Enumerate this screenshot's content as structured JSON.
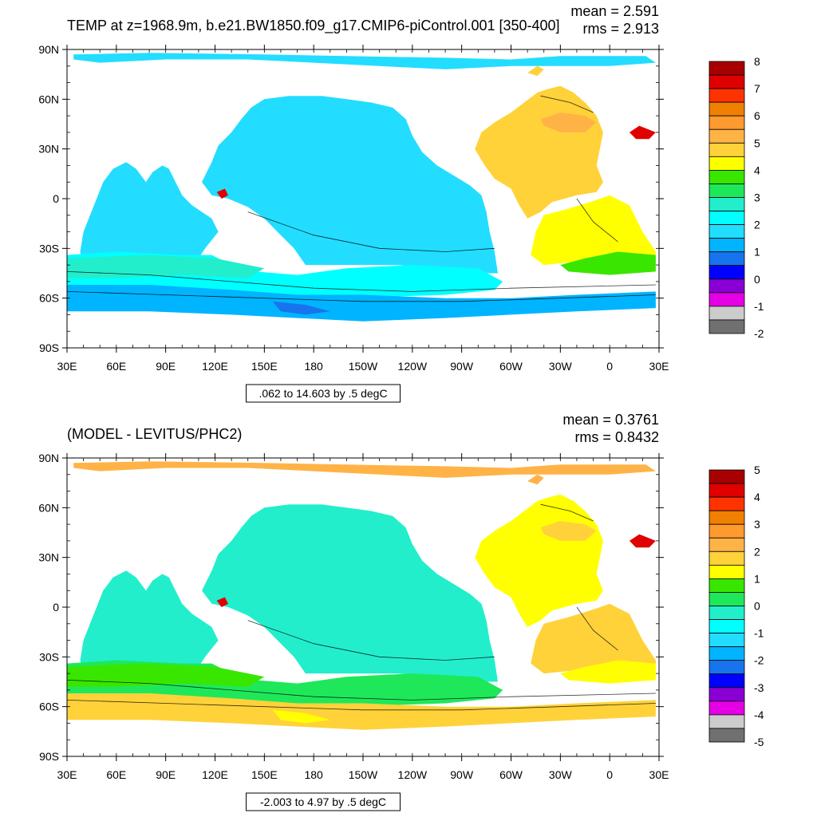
{
  "panels": [
    {
      "id": "top",
      "title": "TEMP at z=1968.9m, b.e21.BW1850.f09_g17.CMIP6-piControl.001 [350-400]",
      "stats": {
        "mean": "mean = 2.591",
        "rms": "rms = 2.913"
      },
      "info_box": ".062 to 14.603 by .5 degC",
      "lat_ticks": [
        "90N",
        "60N",
        "30N",
        "0",
        "30S",
        "60S",
        "90S"
      ],
      "lon_ticks": [
        "30E",
        "60E",
        "90E",
        "120E",
        "150E",
        "180",
        "150W",
        "120W",
        "90W",
        "60W",
        "30W",
        "0",
        "30E"
      ],
      "colorbar": {
        "labels": [
          "8",
          "7",
          "6",
          "5",
          "4",
          "3",
          "2",
          "1",
          "0",
          "-1",
          "-2"
        ],
        "colors": [
          "#a80000",
          "#e00000",
          "#ff3300",
          "#f08000",
          "#ff9a2e",
          "#ffb347",
          "#ffd23a",
          "#ffff00",
          "#39e600",
          "#1ee85a",
          "#22eecc",
          "#00ffff",
          "#22ddff",
          "#00b4ff",
          "#1874ee",
          "#0000ff",
          "#8a00d4",
          "#e600e6",
          "#cccccc",
          "#707070"
        ]
      },
      "ocean_fills": {
        "pacific": "#22ddff",
        "atlantic_n": "#ffd23a",
        "atlantic_nn": "#ffb347",
        "atlantic_s": "#ffff00",
        "indian": "#22ddff",
        "southern": "#00ffff",
        "south_band": "#22eecc",
        "south_band_b": "#39e600",
        "arctic": "#22ddff",
        "antarctic": "#00b4ff",
        "antarctic_deep": "#1874ee",
        "red": "#e00000",
        "arctic_ob": "#ffd23a"
      }
    },
    {
      "id": "bottom",
      "title": "(MODEL - LEVITUS/PHC2)",
      "stats": {
        "mean": "mean = 0.3761",
        "rms": "rms = 0.8432"
      },
      "info_box": "-2.003 to 4.97 by .5 degC",
      "lat_ticks": [
        "90N",
        "60N",
        "30N",
        "0",
        "30S",
        "60S",
        "90S"
      ],
      "lon_ticks": [
        "30E",
        "60E",
        "90E",
        "120E",
        "150E",
        "180",
        "150W",
        "120W",
        "90W",
        "60W",
        "30W",
        "0",
        "30E"
      ],
      "colorbar": {
        "labels": [
          "5",
          "4",
          "3",
          "2",
          "1",
          "0",
          "-1",
          "-2",
          "-3",
          "-4",
          "-5"
        ],
        "colors": [
          "#a80000",
          "#e00000",
          "#ff3300",
          "#f08000",
          "#ff9a2e",
          "#ffb347",
          "#ffd23a",
          "#ffff00",
          "#39e600",
          "#1ee85a",
          "#22eecc",
          "#00ffff",
          "#22ddff",
          "#00b4ff",
          "#1874ee",
          "#0000ff",
          "#8a00d4",
          "#e600e6",
          "#cccccc",
          "#707070"
        ]
      },
      "ocean_fills": {
        "pacific": "#22eecc",
        "atlantic_n": "#ffff00",
        "atlantic_nn": "#ffd23a",
        "atlantic_s": "#ffd23a",
        "indian": "#22eecc",
        "southern": "#1ee85a",
        "south_band": "#39e600",
        "south_band_b": "#ffff00",
        "arctic": "#ffb347",
        "antarctic": "#ffd23a",
        "antarctic_deep": "#ffff00",
        "red": "#e00000",
        "arctic_ob": "#ffb347"
      }
    }
  ]
}
